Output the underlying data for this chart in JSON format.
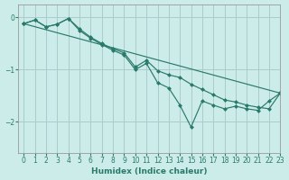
{
  "background_color": "#ccecea",
  "grid_color": "#aaccca",
  "line_color": "#2a7a6a",
  "xlabel": "Humidex (Indice chaleur)",
  "xlim": [
    -0.5,
    23
  ],
  "ylim": [
    -2.6,
    0.25
  ],
  "yticks": [
    0,
    -1,
    -2
  ],
  "xticks": [
    0,
    1,
    2,
    3,
    4,
    5,
    6,
    7,
    8,
    9,
    10,
    11,
    12,
    13,
    14,
    15,
    16,
    17,
    18,
    19,
    20,
    21,
    22,
    23
  ],
  "line1_x": [
    0,
    1,
    2,
    3,
    4,
    5,
    6,
    7,
    8,
    9,
    10,
    11,
    12,
    13,
    14,
    15,
    16,
    17,
    18,
    19,
    20,
    21,
    22,
    23
  ],
  "line1_y": [
    -0.12,
    -0.05,
    -0.18,
    -0.13,
    -0.02,
    -0.22,
    -0.38,
    -0.5,
    -0.6,
    -0.68,
    -0.95,
    -0.82,
    -1.02,
    -1.1,
    -1.15,
    -1.28,
    -1.38,
    -1.48,
    -1.58,
    -1.62,
    -1.68,
    -1.72,
    -1.75,
    -1.45
  ],
  "line2_x": [
    0,
    1,
    2,
    3,
    4,
    5,
    6,
    7,
    8,
    9,
    10,
    11,
    12,
    13,
    14,
    15,
    16,
    17,
    18,
    19,
    20,
    21,
    22,
    23
  ],
  "line2_y": [
    -0.12,
    -0.05,
    -0.18,
    -0.13,
    -0.02,
    -0.25,
    -0.4,
    -0.52,
    -0.63,
    -0.72,
    -1.0,
    -0.88,
    -1.25,
    -1.35,
    -1.68,
    -2.1,
    -1.6,
    -1.68,
    -1.75,
    -1.7,
    -1.75,
    -1.78,
    -1.6,
    -1.45
  ],
  "line3_x": [
    0,
    1,
    4,
    10,
    11,
    12,
    13,
    14,
    15,
    16,
    17,
    18,
    19,
    20,
    21,
    22,
    23
  ],
  "line3_y": [
    -0.12,
    -0.05,
    -0.02,
    -1.0,
    -0.88,
    -1.25,
    -1.35,
    -1.68,
    -2.1,
    -1.6,
    -1.68,
    -1.75,
    -1.7,
    -1.75,
    -1.78,
    -1.6,
    -1.45
  ]
}
